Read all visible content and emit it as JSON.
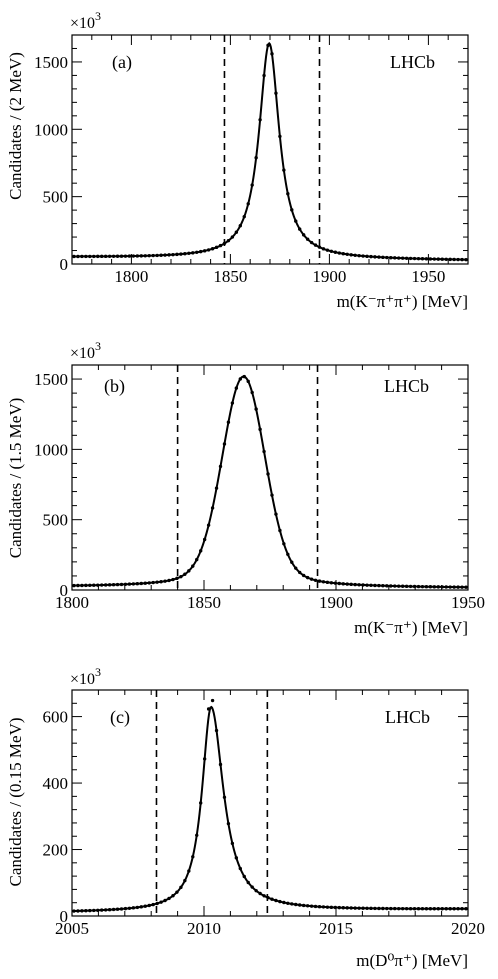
{
  "chart_data": [
    {
      "type": "line",
      "panel": "(a)",
      "brand": "LHCb",
      "scale_text": "×10",
      "scale_exp": "3",
      "xlabel": "m(K⁻π⁺π⁺) [MeV]",
      "ylabel": "Candidates / (2 MeV)",
      "xlim": [
        1770,
        1970
      ],
      "ylim": [
        0,
        1700
      ],
      "x_ticks": [
        1800,
        1850,
        1900,
        1950
      ],
      "y_ticks": [
        0,
        500,
        1000,
        1500
      ],
      "x_tick_labels": [
        "1800",
        "1850",
        "1900",
        "1950"
      ],
      "y_tick_labels": [
        "0",
        "500",
        "1000",
        "1500"
      ],
      "cut_lines": [
        1847,
        1895
      ],
      "peak": {
        "mean": 1869.6,
        "height": 1600,
        "sigma": 6.2,
        "shape": "lorentzian",
        "background": 38,
        "bg_slope": -0.12
      },
      "bin_width": 2,
      "markers": "data points with fit curve"
    },
    {
      "type": "line",
      "panel": "(b)",
      "brand": "LHCb",
      "scale_text": "×10",
      "scale_exp": "3",
      "xlabel": "m(K⁻π⁺) [MeV]",
      "ylabel": "Candidates / (1.5 MeV)",
      "xlim": [
        1800,
        1950
      ],
      "ylim": [
        0,
        1600
      ],
      "x_ticks": [
        1800,
        1850,
        1900,
        1950
      ],
      "y_ticks": [
        0,
        500,
        1000,
        1500
      ],
      "x_tick_labels": [
        "1800",
        "1850",
        "1900",
        "1950"
      ],
      "y_tick_labels": [
        "0",
        "500",
        "1000",
        "1500"
      ],
      "cut_lines": [
        1840,
        1893
      ],
      "peak": {
        "mean": 1865,
        "height": 1500,
        "sigma": 8.0,
        "shape": "gaussian-tails",
        "background": 18,
        "bg_slope": -0.05
      },
      "bin_width": 1.5,
      "markers": "data points with fit curve"
    },
    {
      "type": "line",
      "panel": "(c)",
      "brand": "LHCb",
      "scale_text": "×10",
      "scale_exp": "3",
      "xlabel": "m(D⁰π⁺) [MeV]",
      "ylabel": "Candidates / (0.15 MeV)",
      "xlim": [
        2005,
        2020
      ],
      "ylim": [
        0,
        680
      ],
      "x_ticks": [
        2005,
        2010,
        2015,
        2020
      ],
      "y_ticks": [
        0,
        200,
        400,
        600
      ],
      "x_tick_labels": [
        "2005",
        "2010",
        "2015",
        "2020"
      ],
      "y_tick_labels": [
        "0",
        "200",
        "400",
        "600"
      ],
      "cut_lines": [
        2008.2,
        2012.4
      ],
      "peak": {
        "mean": 2010.27,
        "height": 615,
        "sigma": 0.42,
        "shape": "lorentzian-right-tail",
        "background": 14,
        "bg_slope": 0.6
      },
      "bin_width": 0.15,
      "markers": "data points with fit curve"
    }
  ]
}
